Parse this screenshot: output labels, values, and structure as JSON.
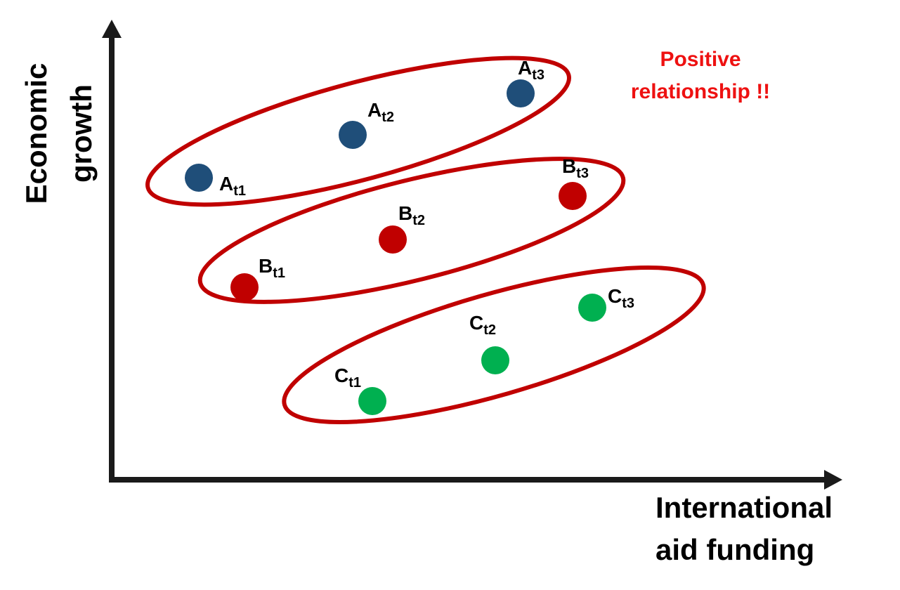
{
  "x_axis": {
    "label_line1": "International",
    "label_line2": "aid funding"
  },
  "y_axis": {
    "label_line1": "Economic",
    "label_line2": "growth"
  },
  "annotation": {
    "line1": "Positive",
    "line2": "relationship !!",
    "color": "#ee1111"
  },
  "colors": {
    "axis": "#1a1a1a",
    "ellipse": "#c00000",
    "group_a": "#1f4e79",
    "group_b": "#c00000",
    "group_c": "#00b050"
  },
  "groups": [
    {
      "name": "A",
      "color_key": "group_a",
      "points": [
        {
          "letter": "A",
          "sub": "t1"
        },
        {
          "letter": "A",
          "sub": "t2"
        },
        {
          "letter": "A",
          "sub": "t3"
        }
      ]
    },
    {
      "name": "B",
      "color_key": "group_b",
      "points": [
        {
          "letter": "B",
          "sub": "t1"
        },
        {
          "letter": "B",
          "sub": "t2"
        },
        {
          "letter": "B",
          "sub": "t3"
        }
      ]
    },
    {
      "name": "C",
      "color_key": "group_c",
      "points": [
        {
          "letter": "C",
          "sub": "t1"
        },
        {
          "letter": "C",
          "sub": "t2"
        },
        {
          "letter": "C",
          "sub": "t3"
        }
      ]
    }
  ]
}
